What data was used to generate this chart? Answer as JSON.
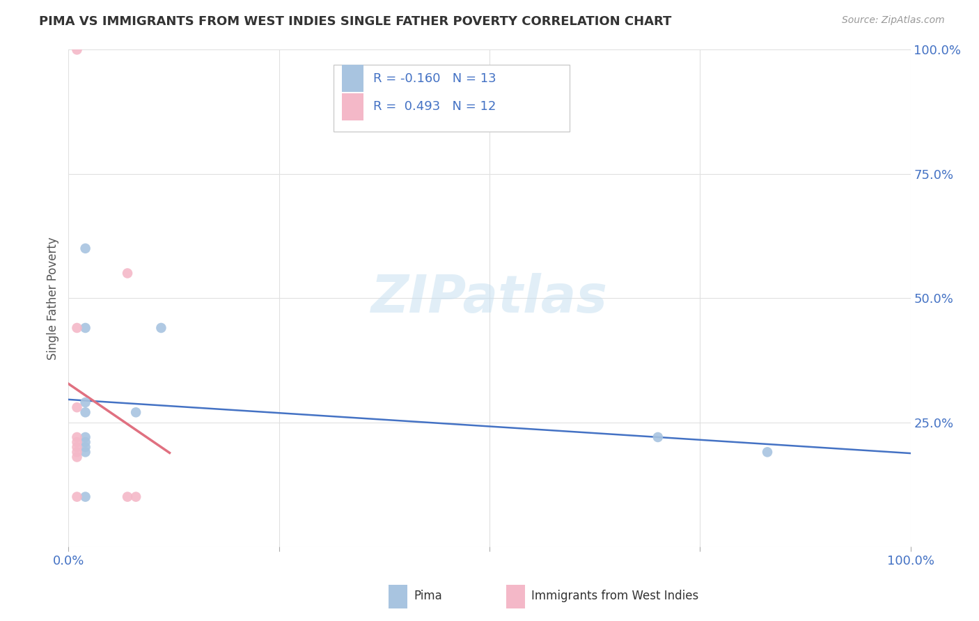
{
  "title": "PIMA VS IMMIGRANTS FROM WEST INDIES SINGLE FATHER POVERTY CORRELATION CHART",
  "source": "Source: ZipAtlas.com",
  "ylabel": "Single Father Poverty",
  "xlim": [
    0,
    1
  ],
  "ylim": [
    0,
    1
  ],
  "pima_color": "#a8c4e0",
  "westindies_color": "#f4b8c8",
  "pima_line_color": "#4472c4",
  "westindies_line_color": "#e07080",
  "R_pima": -0.16,
  "N_pima": 13,
  "R_westindies": 0.493,
  "N_westindies": 12,
  "pima_points": [
    [
      0.02,
      0.6
    ],
    [
      0.02,
      0.44
    ],
    [
      0.02,
      0.29
    ],
    [
      0.02,
      0.27
    ],
    [
      0.02,
      0.22
    ],
    [
      0.02,
      0.21
    ],
    [
      0.02,
      0.2
    ],
    [
      0.02,
      0.19
    ],
    [
      0.02,
      0.1
    ],
    [
      0.08,
      0.27
    ],
    [
      0.11,
      0.44
    ],
    [
      0.7,
      0.22
    ],
    [
      0.83,
      0.19
    ]
  ],
  "westindies_points": [
    [
      0.01,
      1.0
    ],
    [
      0.01,
      0.44
    ],
    [
      0.01,
      0.28
    ],
    [
      0.01,
      0.22
    ],
    [
      0.01,
      0.21
    ],
    [
      0.01,
      0.2
    ],
    [
      0.01,
      0.19
    ],
    [
      0.01,
      0.18
    ],
    [
      0.01,
      0.1
    ],
    [
      0.07,
      0.1
    ],
    [
      0.07,
      0.55
    ],
    [
      0.08,
      0.1
    ]
  ],
  "legend_labels": [
    "Pima",
    "Immigrants from West Indies"
  ],
  "background_color": "#ffffff",
  "grid_color": "#e0e0e0"
}
